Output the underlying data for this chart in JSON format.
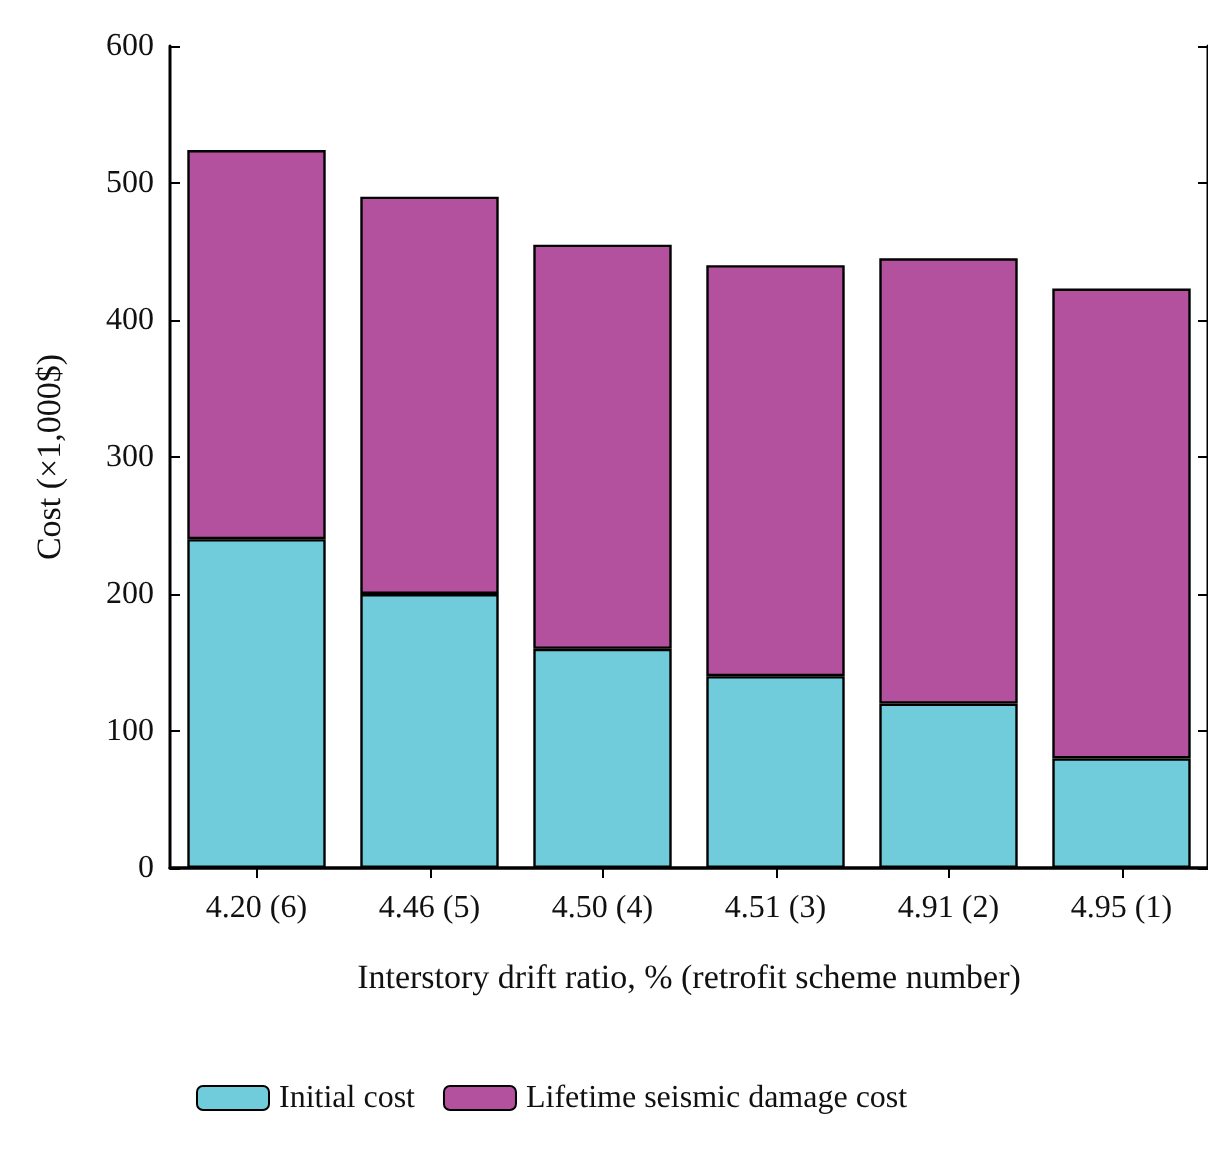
{
  "chart_data": {
    "type": "bar",
    "stacked": true,
    "xlabel": "Interstory drift ratio, % (retrofit scheme number)",
    "ylabel": "Cost (×1,000$)",
    "categories": [
      "4.20 (6)",
      "4.46 (5)",
      "4.50 (4)",
      "4.51 (3)",
      "4.91 (2)",
      "4.95 (1)"
    ],
    "series": [
      {
        "name": "Initial cost",
        "color": "#70ccda",
        "values": [
          240,
          200,
          160,
          140,
          120,
          80
        ]
      },
      {
        "name": "Lifetime seismic damage cost",
        "color": "#b4519e",
        "values": [
          284,
          290,
          295,
          300,
          325,
          343
        ]
      }
    ],
    "ylim": [
      0,
      600
    ],
    "yticks": [
      0,
      100,
      200,
      300,
      400,
      500,
      600
    ],
    "grid": false,
    "legend": "bottom left"
  }
}
